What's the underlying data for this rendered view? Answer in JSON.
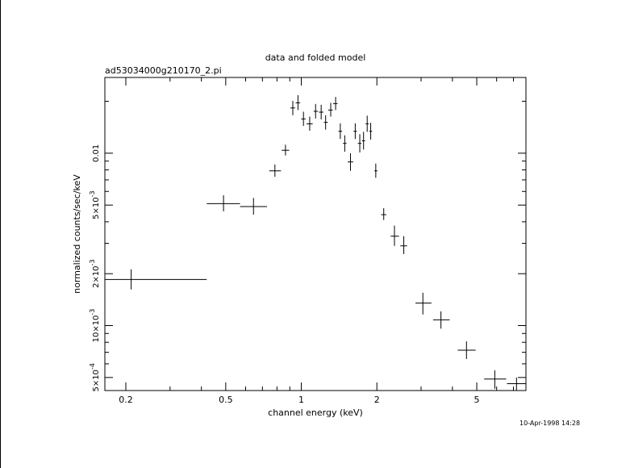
{
  "page": {
    "title": "data and folded model",
    "file_label": "ad53034000g210170_2.pi",
    "timestamp": "10-Apr-1998 14:28"
  },
  "colors": {
    "background": "#ffffff",
    "foreground": "#000000"
  },
  "chart_data": {
    "type": "scatter",
    "title": "data and folded model",
    "subtitle": "ad53034000g210170_2.pi",
    "xlabel": "channel energy (keV)",
    "ylabel": "normalized counts/sec/keV",
    "x_scale": "log",
    "y_scale": "log",
    "xlim": [
      0.165,
      7.85
    ],
    "ylim": [
      0.00042,
      0.0275
    ],
    "grid": false,
    "legend": "none",
    "x_ticks": [
      {
        "value": 0.2,
        "label": "0.2"
      },
      {
        "value": 0.5,
        "label": "0.5"
      },
      {
        "value": 1,
        "label": "1"
      },
      {
        "value": 2,
        "label": "2"
      },
      {
        "value": 5,
        "label": "5"
      }
    ],
    "y_ticks": [
      {
        "value": 0.0005,
        "mantissa": "5",
        "exponent": "-4"
      },
      {
        "value": 0.001,
        "mantissa": "10",
        "exponent": "-3"
      },
      {
        "value": 0.002,
        "mantissa": "2",
        "exponent": "-3"
      },
      {
        "value": 0.005,
        "mantissa": "5",
        "exponent": "-3"
      },
      {
        "value": 0.01,
        "mantissa": "0.01",
        "exponent": ""
      }
    ],
    "x_minor_ticks": [
      0.3,
      0.4,
      0.6,
      0.7,
      0.8,
      0.9,
      3,
      4,
      6,
      7
    ],
    "y_minor_ticks": [
      0.0006,
      0.0007,
      0.0008,
      0.0009,
      0.003,
      0.004,
      0.006,
      0.007,
      0.008,
      0.009,
      0.02
    ],
    "points": [
      {
        "x": 0.21,
        "xlo": 0.165,
        "xhi": 0.42,
        "y": 0.00185,
        "ylo": 0.00162,
        "yhi": 0.00212
      },
      {
        "x": 0.49,
        "xlo": 0.42,
        "xhi": 0.57,
        "y": 0.0051,
        "ylo": 0.0046,
        "yhi": 0.0057
      },
      {
        "x": 0.645,
        "xlo": 0.57,
        "xhi": 0.73,
        "y": 0.0049,
        "ylo": 0.0044,
        "yhi": 0.0055
      },
      {
        "x": 0.785,
        "xlo": 0.745,
        "xhi": 0.83,
        "y": 0.0079,
        "ylo": 0.0073,
        "yhi": 0.0086
      },
      {
        "x": 0.865,
        "xlo": 0.835,
        "xhi": 0.895,
        "y": 0.0104,
        "ylo": 0.0097,
        "yhi": 0.0112
      },
      {
        "x": 0.925,
        "xlo": 0.905,
        "xhi": 0.945,
        "y": 0.0183,
        "ylo": 0.0166,
        "yhi": 0.0201
      },
      {
        "x": 0.97,
        "xlo": 0.95,
        "xhi": 0.99,
        "y": 0.0196,
        "ylo": 0.0178,
        "yhi": 0.0217
      },
      {
        "x": 1.02,
        "xlo": 1.0,
        "xhi": 1.04,
        "y": 0.0158,
        "ylo": 0.0144,
        "yhi": 0.0174
      },
      {
        "x": 1.08,
        "xlo": 1.05,
        "xhi": 1.11,
        "y": 0.0148,
        "ylo": 0.0135,
        "yhi": 0.0163
      },
      {
        "x": 1.14,
        "xlo": 1.12,
        "xhi": 1.165,
        "y": 0.0175,
        "ylo": 0.0159,
        "yhi": 0.0193
      },
      {
        "x": 1.2,
        "xlo": 1.175,
        "xhi": 1.225,
        "y": 0.0173,
        "ylo": 0.0157,
        "yhi": 0.0191
      },
      {
        "x": 1.25,
        "xlo": 1.23,
        "xhi": 1.275,
        "y": 0.0151,
        "ylo": 0.0137,
        "yhi": 0.0166
      },
      {
        "x": 1.31,
        "xlo": 1.28,
        "xhi": 1.335,
        "y": 0.0178,
        "ylo": 0.0163,
        "yhi": 0.0196
      },
      {
        "x": 1.37,
        "xlo": 1.34,
        "xhi": 1.395,
        "y": 0.0194,
        "ylo": 0.0178,
        "yhi": 0.0212
      },
      {
        "x": 1.43,
        "xlo": 1.405,
        "xhi": 1.455,
        "y": 0.0134,
        "ylo": 0.0121,
        "yhi": 0.0149
      },
      {
        "x": 1.49,
        "xlo": 1.465,
        "xhi": 1.515,
        "y": 0.0114,
        "ylo": 0.0102,
        "yhi": 0.0127
      },
      {
        "x": 1.57,
        "xlo": 1.53,
        "xhi": 1.61,
        "y": 0.0089,
        "ylo": 0.0079,
        "yhi": 0.01
      },
      {
        "x": 1.64,
        "xlo": 1.615,
        "xhi": 1.665,
        "y": 0.0134,
        "ylo": 0.0121,
        "yhi": 0.0149
      },
      {
        "x": 1.71,
        "xlo": 1.68,
        "xhi": 1.735,
        "y": 0.0114,
        "ylo": 0.0101,
        "yhi": 0.0129
      },
      {
        "x": 1.77,
        "xlo": 1.745,
        "xhi": 1.795,
        "y": 0.0118,
        "ylo": 0.0105,
        "yhi": 0.0133
      },
      {
        "x": 1.83,
        "xlo": 1.805,
        "xhi": 1.855,
        "y": 0.0148,
        "ylo": 0.0133,
        "yhi": 0.0165
      },
      {
        "x": 1.89,
        "xlo": 1.865,
        "xhi": 1.915,
        "y": 0.0134,
        "ylo": 0.012,
        "yhi": 0.015
      },
      {
        "x": 1.98,
        "xlo": 1.955,
        "xhi": 2.01,
        "y": 0.0079,
        "ylo": 0.0072,
        "yhi": 0.0087
      },
      {
        "x": 2.13,
        "xlo": 2.08,
        "xhi": 2.18,
        "y": 0.0044,
        "ylo": 0.0041,
        "yhi": 0.0048
      },
      {
        "x": 2.35,
        "xlo": 2.27,
        "xhi": 2.45,
        "y": 0.0033,
        "ylo": 0.0029,
        "yhi": 0.0038
      },
      {
        "x": 2.56,
        "xlo": 2.48,
        "xhi": 2.64,
        "y": 0.0029,
        "ylo": 0.0026,
        "yhi": 0.0033
      },
      {
        "x": 3.05,
        "xlo": 2.85,
        "xhi": 3.3,
        "y": 0.00135,
        "ylo": 0.00116,
        "yhi": 0.00155
      },
      {
        "x": 3.6,
        "xlo": 3.35,
        "xhi": 3.9,
        "y": 0.00108,
        "ylo": 0.00096,
        "yhi": 0.00121
      },
      {
        "x": 4.55,
        "xlo": 4.2,
        "xhi": 4.95,
        "y": 0.00072,
        "ylo": 0.00064,
        "yhi": 0.00081
      },
      {
        "x": 5.9,
        "xlo": 5.35,
        "xhi": 6.55,
        "y": 0.00049,
        "ylo": 0.00043,
        "yhi": 0.00055
      },
      {
        "x": 7.2,
        "xlo": 6.6,
        "xhi": 7.85,
        "y": 0.00046,
        "ylo": 0.00042,
        "yhi": 0.0005
      }
    ]
  }
}
